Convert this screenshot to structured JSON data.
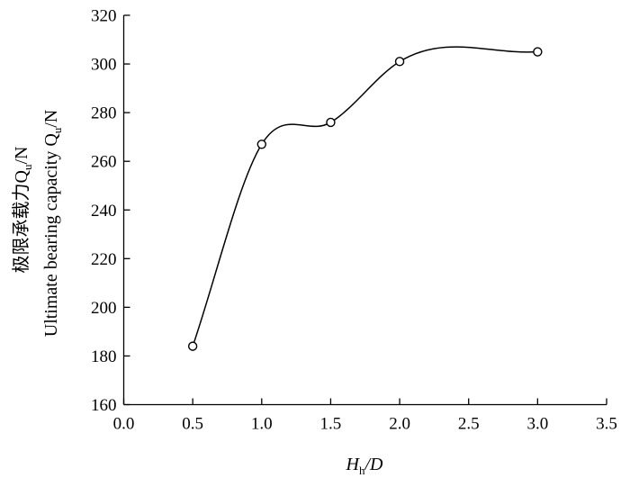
{
  "chart_data": {
    "type": "line",
    "title": "",
    "xlabel": {
      "main": "H",
      "sub": "h",
      "tail": "/D"
    },
    "ylabel": {
      "line1": {
        "main": "极限承载力Q",
        "sub": "u",
        "tail": "/N"
      },
      "line2": {
        "main": "Ultimate bearing capacity Q",
        "sub": "u",
        "tail": "/N"
      }
    },
    "xlim": [
      0.0,
      3.5
    ],
    "ylim": [
      160,
      320
    ],
    "xticks": [
      "0.0",
      "0.5",
      "1.0",
      "1.5",
      "2.0",
      "2.5",
      "3.0",
      "3.5"
    ],
    "yticks": [
      "160",
      "180",
      "200",
      "220",
      "240",
      "260",
      "280",
      "300",
      "320"
    ],
    "smooth": true,
    "marker": "open-circle",
    "grid": false,
    "series": [
      {
        "x": [
          0.5,
          1.0,
          1.5,
          2.0,
          3.0
        ],
        "y": [
          184,
          267,
          276,
          301,
          305
        ]
      }
    ]
  }
}
